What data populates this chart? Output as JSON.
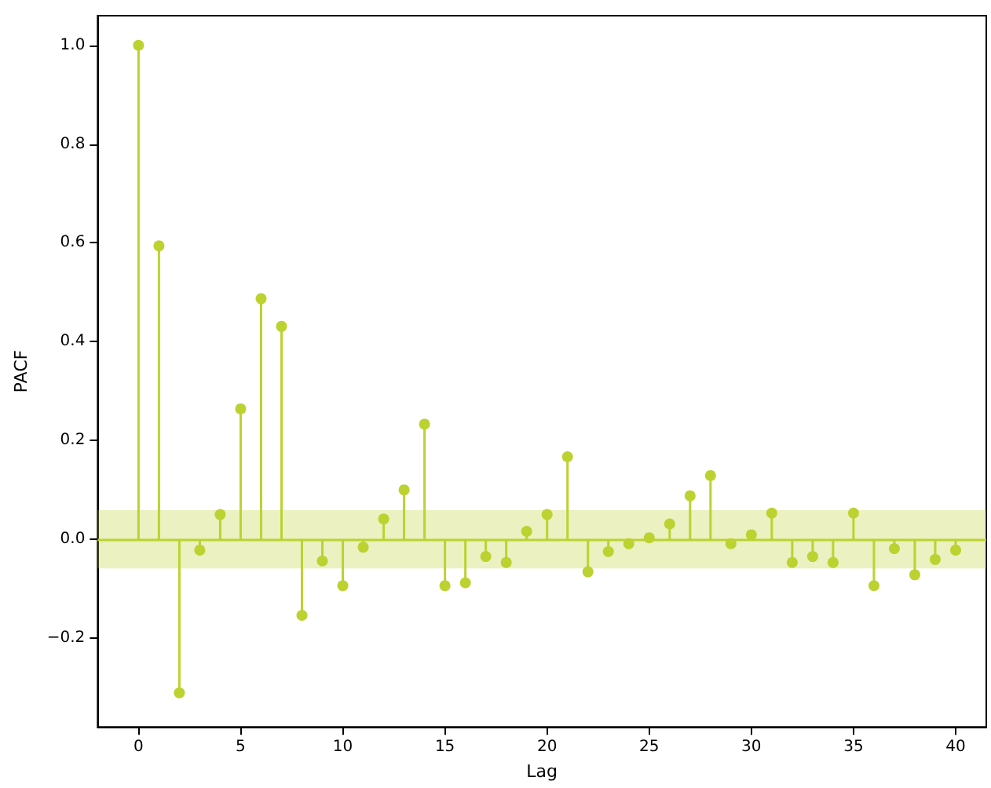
{
  "chart_data": {
    "type": "lollipop",
    "xlabel": "Lag",
    "ylabel": "PACF",
    "color": "#bcd230",
    "marker": "circle",
    "x": [
      0,
      1,
      2,
      3,
      4,
      5,
      6,
      7,
      8,
      9,
      10,
      11,
      12,
      13,
      14,
      15,
      16,
      17,
      18,
      19,
      20,
      21,
      22,
      23,
      24,
      25,
      26,
      27,
      28,
      29,
      30,
      31,
      32,
      33,
      34,
      35,
      36,
      37,
      38,
      39,
      40
    ],
    "values": [
      1.0,
      0.594,
      -0.311,
      -0.022,
      0.05,
      0.264,
      0.487,
      0.431,
      -0.154,
      -0.044,
      -0.094,
      -0.016,
      0.041,
      0.1,
      0.233,
      -0.094,
      -0.088,
      -0.035,
      -0.047,
      0.016,
      0.05,
      0.167,
      -0.066,
      -0.025,
      -0.009,
      0.003,
      0.031,
      0.088,
      0.129,
      -0.009,
      0.009,
      0.053,
      -0.047,
      -0.035,
      -0.047,
      0.053,
      -0.094,
      -0.019,
      -0.072,
      -0.041,
      -0.022
    ],
    "xlim": [
      -2,
      41.5
    ],
    "xticks": [
      0,
      5,
      10,
      15,
      20,
      25,
      30,
      35,
      40
    ],
    "ylim": [
      -0.38,
      1.06
    ],
    "yticks": [
      {
        "value": -0.2,
        "label": "−0.2"
      },
      {
        "value": 0,
        "label": "0.0"
      },
      {
        "value": 0.2,
        "label": "0.2"
      },
      {
        "value": 0.4,
        "label": "0.4"
      },
      {
        "value": 0.6,
        "label": "0.6"
      },
      {
        "value": 0.8,
        "label": "0.8"
      },
      {
        "value": 1,
        "label": "1.0"
      }
    ],
    "ref_lines": [
      {
        "axis": "y",
        "value": 0,
        "color": "#bcd230"
      }
    ],
    "bands": [
      {
        "axis": "y",
        "from": -0.059,
        "to": 0.059,
        "color": "#bcd230"
      }
    ]
  }
}
